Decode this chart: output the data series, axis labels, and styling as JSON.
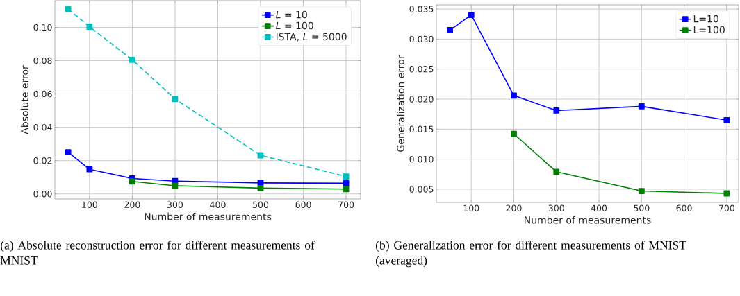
{
  "chart_data": [
    {
      "type": "line",
      "xlabel": "Number of measurements",
      "ylabel": "Absolute error",
      "x": [
        50,
        100,
        200,
        300,
        500,
        700
      ],
      "series": [
        {
          "name": "*L* = 10",
          "color": "#0000ff",
          "values": [
            0.025,
            0.0148,
            0.0093,
            0.0077,
            0.0066,
            0.0064
          ]
        },
        {
          "name": "*L* = 100",
          "color": "#008000",
          "values": [
            null,
            null,
            0.0075,
            0.0049,
            0.0035,
            0.0029
          ]
        },
        {
          "name": "ISTA, *L* = 5000",
          "color": "#00bfbf",
          "line_style": "dashed",
          "values": [
            0.111,
            0.1004,
            0.0805,
            0.057,
            0.0232,
            0.0105
          ]
        }
      ],
      "xlim": [
        19,
        734
      ],
      "ylim": [
        -0.003,
        0.116
      ],
      "xticks": [
        100,
        200,
        300,
        400,
        500,
        600,
        700
      ],
      "yticks": [
        {
          "value": 0,
          "label": "0.00"
        },
        {
          "value": 0.02,
          "label": "0.02"
        },
        {
          "value": 0.04,
          "label": "0.04"
        },
        {
          "value": 0.06,
          "label": "0.06"
        },
        {
          "value": 0.08,
          "label": "0.08"
        },
        {
          "value": 0.1,
          "label": "0.10"
        }
      ],
      "grid": true,
      "legend": "top right",
      "marker": "square",
      "line_style": "solid",
      "annotations": [
        "(a) Absolute reconstruction error for different measurements of MNIST"
      ]
    },
    {
      "type": "line",
      "xlabel": "Number of measurements",
      "ylabel": "Generalization error",
      "x": [
        50,
        100,
        200,
        300,
        500,
        700
      ],
      "series": [
        {
          "name": "L=10",
          "color": "#0000ff",
          "values": [
            0.0315,
            0.034,
            0.0206,
            0.0181,
            0.0188,
            0.0165
          ]
        },
        {
          "name": "L=100",
          "color": "#008000",
          "values": [
            null,
            null,
            0.0142,
            0.0079,
            0.0047,
            0.0043
          ]
        }
      ],
      "xlim": [
        18,
        728
      ],
      "ylim": [
        0.0028,
        0.0357
      ],
      "xticks": [
        100,
        200,
        300,
        400,
        500,
        600,
        700
      ],
      "yticks": [
        {
          "value": 0.005,
          "label": "0.005"
        },
        {
          "value": 0.01,
          "label": "0.010"
        },
        {
          "value": 0.015,
          "label": "0.015"
        },
        {
          "value": 0.02,
          "label": "0.020"
        },
        {
          "value": 0.025,
          "label": "0.025"
        },
        {
          "value": 0.03,
          "label": "0.030"
        },
        {
          "value": 0.035,
          "label": "0.035"
        }
      ],
      "grid": true,
      "legend": "top right",
      "marker": "square",
      "line_style": "solid",
      "annotations": [
        "(b) Generalization error for different measurements of MNIST (averaged)"
      ]
    }
  ]
}
